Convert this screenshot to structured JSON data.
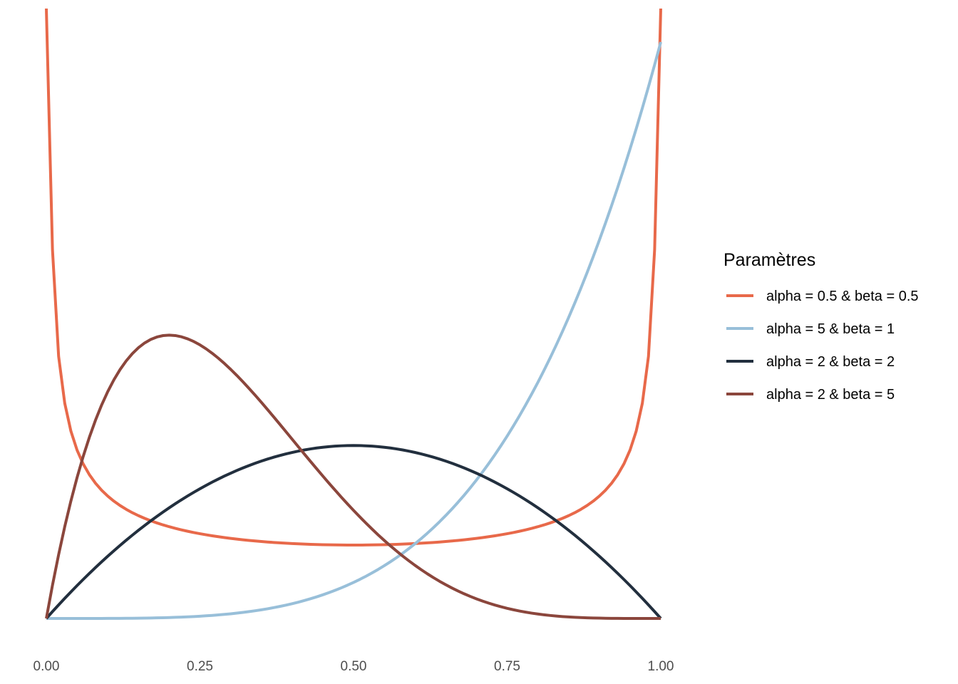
{
  "chart_data": {
    "type": "line",
    "title": "",
    "xlabel": "",
    "ylabel": "",
    "xlim": [
      0,
      1
    ],
    "ylim": [
      0,
      5
    ],
    "x_ticks": [
      "0.00",
      "0.25",
      "0.50",
      "0.75",
      "1.00"
    ],
    "y_ticks": [],
    "grid": false,
    "legend": {
      "title": "Paramètres",
      "placement": "right"
    },
    "series": [
      {
        "name": "alpha = 0.5 & beta = 0.5",
        "color": "#E8694A",
        "alpha": 0.5,
        "beta": 0.5
      },
      {
        "name": "alpha = 5 & beta = 1",
        "color": "#98BFD9",
        "alpha": 5,
        "beta": 1
      },
      {
        "name": "alpha = 2 & beta = 2",
        "color": "#222F3E",
        "alpha": 2,
        "beta": 2
      },
      {
        "name": "alpha = 2 & beta = 5",
        "color": "#8B463C",
        "alpha": 2,
        "beta": 5
      }
    ]
  }
}
